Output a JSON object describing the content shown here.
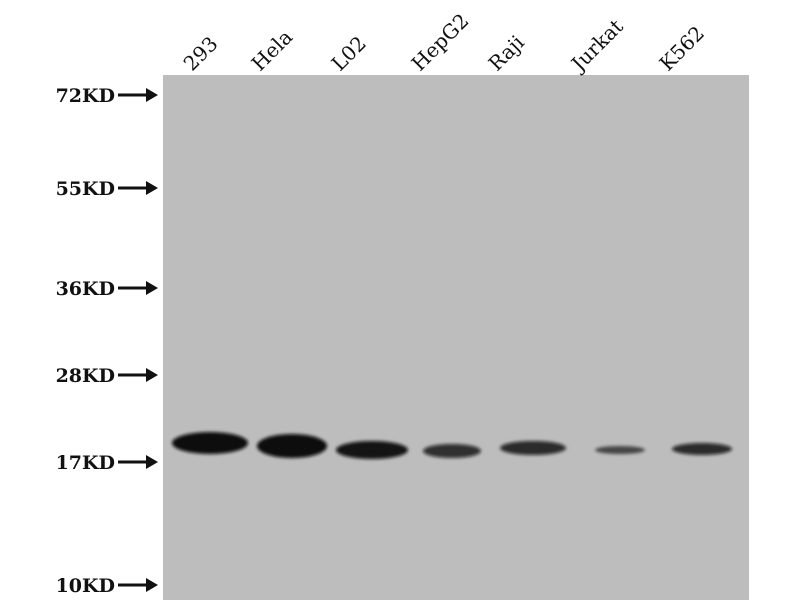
{
  "lanes": [
    "293",
    "Hela",
    "L02",
    "HepG2",
    "Raji",
    "Jurkat",
    "K562"
  ],
  "markers": [
    "72KD",
    "55KD",
    "36KD",
    "28KD",
    "17KD",
    "10KD"
  ],
  "band_relative_intensity": [
    1.0,
    1.0,
    0.85,
    0.6,
    0.65,
    0.3,
    0.65
  ],
  "colors": {
    "membrane": "#bdbdbd",
    "band": "#0a0a0a"
  }
}
